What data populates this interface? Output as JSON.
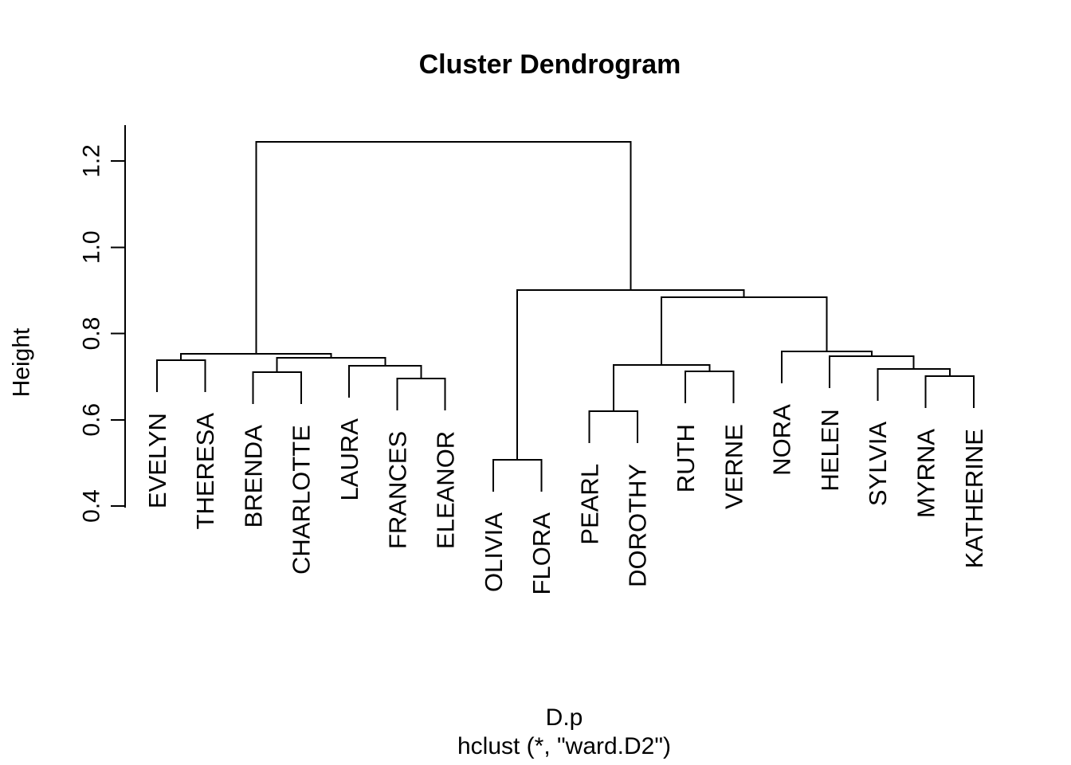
{
  "title": "Cluster Dendrogram",
  "captions": {
    "line1": "D.p",
    "line2": "hclust (*, \"ward.D2\")"
  },
  "y_axis": {
    "label": "Height",
    "ticks": [
      {
        "value": 1.2,
        "label": "1.2"
      },
      {
        "value": 1.0,
        "label": "1.0"
      },
      {
        "value": 0.8,
        "label": "0.8"
      },
      {
        "value": 0.6,
        "label": "0.6"
      },
      {
        "value": 0.4,
        "label": "0.4"
      }
    ]
  },
  "colors": {
    "line": "#000000",
    "text": "#000000",
    "background": "#ffffff"
  },
  "chart_data": {
    "type": "dendrogram",
    "clustering_method": "ward.D2",
    "leaf_order": [
      "EVELYN",
      "THERESA",
      "BRENDA",
      "CHARLOTTE",
      "LAURA",
      "FRANCES",
      "ELEANOR",
      "OLIVIA",
      "FLORA",
      "PEARL",
      "DOROTHY",
      "RUTH",
      "VERNE",
      "NORA",
      "HELEN",
      "SYLVIA",
      "MYRNA",
      "KATHERINE"
    ],
    "axis_range": [
      0.4,
      1.25
    ],
    "root_height": 1.244,
    "leaf_hang": 0.074,
    "merge_heights": [
      0.507,
      0.62,
      0.696,
      0.701,
      0.71,
      0.712,
      0.718,
      0.725,
      0.727,
      0.738,
      0.744,
      0.747,
      0.753,
      0.758,
      0.884,
      0.901,
      1.244
    ],
    "tree": {
      "height": 1.244,
      "children": [
        {
          "height": 0.753,
          "children": [
            {
              "height": 0.738,
              "children": [
                {
                  "leaf": "EVELYN"
                },
                {
                  "leaf": "THERESA"
                }
              ]
            },
            {
              "height": 0.744,
              "children": [
                {
                  "height": 0.71,
                  "children": [
                    {
                      "leaf": "BRENDA"
                    },
                    {
                      "leaf": "CHARLOTTE"
                    }
                  ]
                },
                {
                  "height": 0.725,
                  "children": [
                    {
                      "leaf": "LAURA"
                    },
                    {
                      "height": 0.696,
                      "children": [
                        {
                          "leaf": "FRANCES"
                        },
                        {
                          "leaf": "ELEANOR"
                        }
                      ]
                    }
                  ]
                }
              ]
            }
          ]
        },
        {
          "height": 0.901,
          "children": [
            {
              "height": 0.507,
              "children": [
                {
                  "leaf": "OLIVIA"
                },
                {
                  "leaf": "FLORA"
                }
              ]
            },
            {
              "height": 0.884,
              "children": [
                {
                  "height": 0.727,
                  "children": [
                    {
                      "height": 0.62,
                      "children": [
                        {
                          "leaf": "PEARL"
                        },
                        {
                          "leaf": "DOROTHY"
                        }
                      ]
                    },
                    {
                      "height": 0.712,
                      "children": [
                        {
                          "leaf": "RUTH"
                        },
                        {
                          "leaf": "VERNE"
                        }
                      ]
                    }
                  ]
                },
                {
                  "height": 0.758,
                  "children": [
                    {
                      "leaf": "NORA"
                    },
                    {
                      "height": 0.747,
                      "children": [
                        {
                          "leaf": "HELEN"
                        },
                        {
                          "height": 0.718,
                          "children": [
                            {
                              "leaf": "SYLVIA"
                            },
                            {
                              "height": 0.701,
                              "children": [
                                {
                                  "leaf": "MYRNA"
                                },
                                {
                                  "leaf": "KATHERINE"
                                }
                              ]
                            }
                          ]
                        }
                      ]
                    }
                  ]
                }
              ]
            }
          ]
        }
      ]
    }
  }
}
